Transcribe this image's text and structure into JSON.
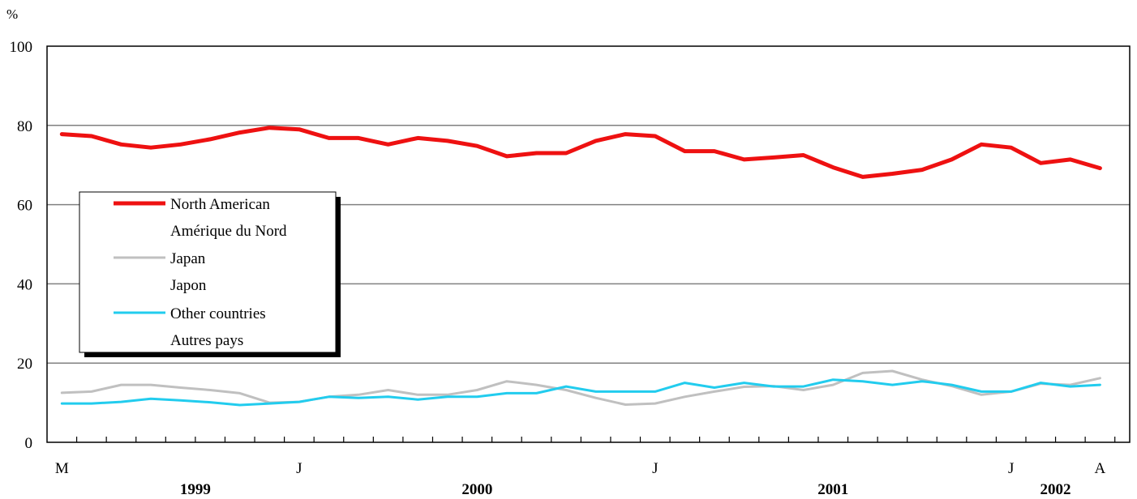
{
  "chart_data": {
    "type": "line",
    "y_unit": "%",
    "ylim": [
      0,
      100
    ],
    "y_ticks": [
      0,
      20,
      40,
      60,
      80,
      100
    ],
    "grid": "horizontal",
    "x_month_labels": [
      {
        "index": 0,
        "label": "M"
      },
      {
        "index": 8,
        "label": "J"
      },
      {
        "index": 20,
        "label": "J"
      },
      {
        "index": 32,
        "label": "J"
      },
      {
        "index": 35,
        "label": "A"
      }
    ],
    "x_year_labels": [
      {
        "index": 4.5,
        "label": "1999"
      },
      {
        "index": 14,
        "label": "2000"
      },
      {
        "index": 26,
        "label": "2001"
      },
      {
        "index": 33.5,
        "label": "2002"
      }
    ],
    "num_points": 36,
    "series": [
      {
        "name": "North American",
        "name_fr": "Amérique du Nord",
        "color": "#ee1111",
        "values": [
          77.8,
          77.3,
          75.2,
          74.4,
          75.2,
          76.5,
          78.2,
          79.4,
          79.0,
          76.8,
          76.8,
          75.2,
          76.8,
          76.1,
          74.8,
          72.2,
          73.0,
          73.0,
          76.1,
          77.8,
          77.3,
          73.5,
          73.5,
          71.4,
          71.9,
          72.5,
          69.4,
          67.0,
          67.8,
          68.8,
          71.4,
          75.2,
          74.4,
          70.5,
          71.4,
          69.2
        ]
      },
      {
        "name": "Japan",
        "name_fr": "Japon",
        "color": "#c0c0c0",
        "values": [
          12.5,
          12.8,
          14.5,
          14.5,
          13.8,
          13.2,
          12.4,
          10.0,
          10.2,
          11.5,
          12.0,
          13.2,
          12.0,
          12.0,
          13.2,
          15.4,
          14.5,
          13.2,
          11.2,
          9.5,
          9.8,
          11.5,
          12.8,
          14.0,
          14.2,
          13.2,
          14.5,
          17.5,
          18.0,
          15.8,
          14.2,
          12.0,
          12.8,
          14.8,
          14.5,
          16.2
        ]
      },
      {
        "name": "Other countries",
        "name_fr": "Autres pays",
        "color": "#22ccee",
        "values": [
          9.8,
          9.8,
          10.2,
          11.0,
          10.6,
          10.1,
          9.4,
          9.8,
          10.2,
          11.5,
          11.2,
          11.5,
          10.8,
          11.5,
          11.5,
          12.4,
          12.4,
          14.1,
          12.8,
          12.8,
          12.8,
          15.0,
          13.8,
          15.0,
          14.1,
          14.1,
          15.8,
          15.4,
          14.5,
          15.4,
          14.5,
          12.8,
          12.8,
          15.0,
          14.1,
          14.5
        ]
      }
    ]
  }
}
